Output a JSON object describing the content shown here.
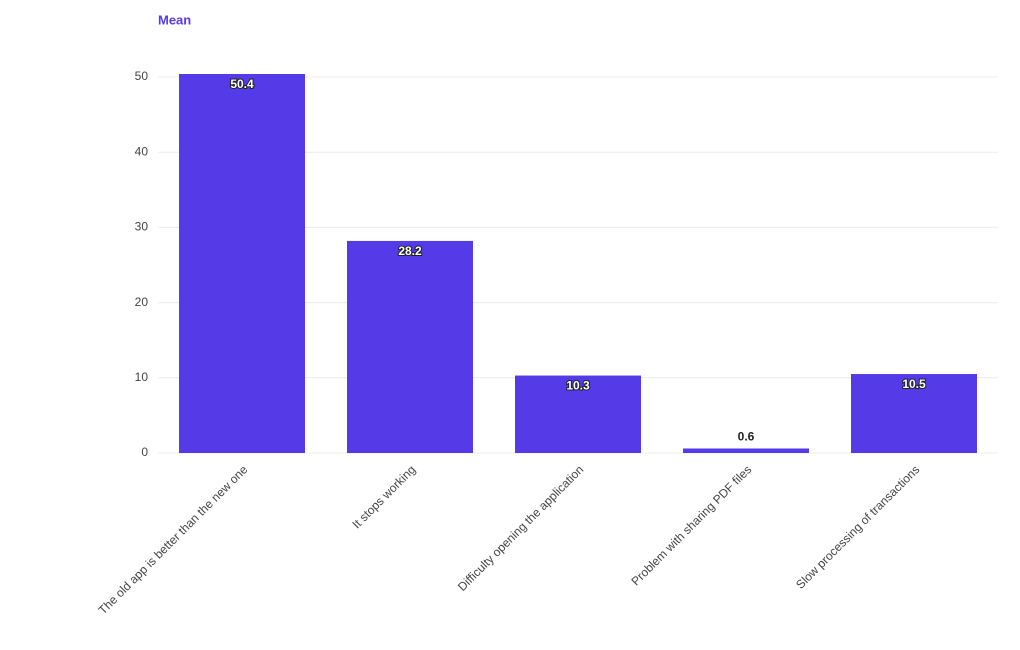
{
  "chart_data": {
    "type": "bar",
    "categories": [
      "The old app is better than the new one",
      "It stops working",
      "Difficulty opening the application",
      "Problem with sharing PDF files",
      "Slow processing of transactions"
    ],
    "series": [
      {
        "name": "Mean",
        "color": "#553be8",
        "values": [
          50.4,
          28.2,
          10.3,
          0.6,
          10.5
        ]
      }
    ],
    "ylim": [
      0,
      55
    ],
    "yticks": [
      0,
      10,
      20,
      30,
      40,
      50
    ],
    "grid": true,
    "legend": "top-left"
  }
}
